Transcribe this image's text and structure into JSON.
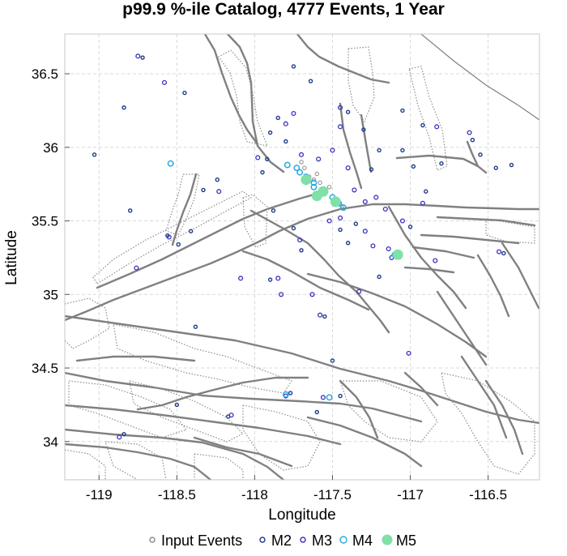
{
  "chart_data": {
    "type": "scatter",
    "title": "p99.9 %-ile Catalog, 4777 Events, 1 Year",
    "xlabel": "Longitude",
    "ylabel": "Latitude",
    "xlim": [
      -119.22,
      -116.17
    ],
    "ylim": [
      33.74,
      36.77
    ],
    "xticks": [
      -119,
      -118.5,
      -118,
      -117.5,
      -117,
      -116.5
    ],
    "xtick_labels": [
      "-119",
      "-118.5",
      "-118",
      "-117.5",
      "-117",
      "-116.5"
    ],
    "yticks": [
      34,
      34.5,
      35,
      35.5,
      36,
      36.5
    ],
    "ytick_labels": [
      "34",
      "34.5",
      "35",
      "35.5",
      "36",
      "36.5"
    ],
    "grid": true,
    "legend_position": "bottom",
    "series": [
      {
        "name": "Input Events",
        "color": "#8c8c8c",
        "marker": "open-circle",
        "points": [
          [
            -117.68,
            35.86
          ],
          [
            -117.62,
            35.78
          ],
          [
            -117.55,
            35.7
          ],
          [
            -117.48,
            35.64
          ],
          [
            -117.6,
            35.82
          ],
          [
            -117.52,
            35.73
          ],
          [
            -117.7,
            35.9
          ],
          [
            -117.44,
            35.6
          ],
          [
            -117.58,
            35.76
          ],
          [
            -117.65,
            35.8
          ],
          [
            -117.1,
            35.27
          ],
          [
            -117.08,
            35.28
          ]
        ]
      },
      {
        "name": "M2",
        "color": "#1f3a8a",
        "marker": "open-circle",
        "points": [
          [
            -119.03,
            35.95
          ],
          [
            -118.72,
            36.61
          ],
          [
            -118.84,
            36.27
          ],
          [
            -118.45,
            36.37
          ],
          [
            -118.8,
            35.57
          ],
          [
            -118.33,
            35.71
          ],
          [
            -118.56,
            35.4
          ],
          [
            -118.49,
            35.34
          ],
          [
            -118.41,
            35.43
          ],
          [
            -118.24,
            35.78
          ],
          [
            -117.92,
            35.92
          ],
          [
            -117.95,
            35.83
          ],
          [
            -117.9,
            36.1
          ],
          [
            -117.85,
            36.2
          ],
          [
            -117.8,
            36.04
          ],
          [
            -117.88,
            35.57
          ],
          [
            -117.75,
            35.45
          ],
          [
            -117.7,
            35.3
          ],
          [
            -117.45,
            35.44
          ],
          [
            -117.4,
            35.35
          ],
          [
            -117.35,
            35.48
          ],
          [
            -117.25,
            35.85
          ],
          [
            -117.2,
            35.98
          ],
          [
            -117.3,
            36.12
          ],
          [
            -117.4,
            36.24
          ],
          [
            -117.05,
            35.98
          ],
          [
            -116.98,
            35.87
          ],
          [
            -116.9,
            35.7
          ],
          [
            -116.8,
            35.89
          ],
          [
            -116.6,
            36.05
          ],
          [
            -116.55,
            35.95
          ],
          [
            -116.45,
            35.86
          ],
          [
            -116.35,
            35.88
          ],
          [
            -116.4,
            35.28
          ],
          [
            -117.0,
            35.46
          ],
          [
            -117.2,
            35.12
          ],
          [
            -117.55,
            34.85
          ],
          [
            -117.5,
            34.55
          ],
          [
            -117.9,
            35.1
          ],
          [
            -118.38,
            34.78
          ],
          [
            -118.5,
            34.25
          ],
          [
            -118.17,
            34.17
          ],
          [
            -117.77,
            34.33
          ],
          [
            -117.6,
            34.2
          ],
          [
            -117.45,
            34.31
          ],
          [
            -118.84,
            34.05
          ],
          [
            -117.64,
            36.45
          ],
          [
            -117.75,
            36.55
          ],
          [
            -117.05,
            36.25
          ],
          [
            -116.92,
            36.15
          ]
        ]
      },
      {
        "name": "M3",
        "color": "#3b2fbf",
        "marker": "open-circle",
        "points": [
          [
            -118.75,
            36.62
          ],
          [
            -118.58,
            36.44
          ],
          [
            -118.23,
            35.7
          ],
          [
            -118.76,
            35.18
          ],
          [
            -118.55,
            35.39
          ],
          [
            -118.09,
            35.11
          ],
          [
            -117.85,
            35.11
          ],
          [
            -117.83,
            35.0
          ],
          [
            -117.58,
            34.86
          ],
          [
            -117.29,
            35.43
          ],
          [
            -117.24,
            35.33
          ],
          [
            -117.33,
            35.02
          ],
          [
            -117.01,
            34.6
          ],
          [
            -117.05,
            35.5
          ],
          [
            -116.92,
            35.62
          ],
          [
            -116.84,
            35.23
          ],
          [
            -116.62,
            36.1
          ],
          [
            -116.83,
            36.14
          ],
          [
            -116.43,
            35.29
          ],
          [
            -117.63,
            35.0
          ],
          [
            -117.71,
            35.37
          ],
          [
            -117.98,
            35.93
          ],
          [
            -117.75,
            36.23
          ],
          [
            -117.8,
            36.16
          ],
          [
            -117.7,
            35.95
          ],
          [
            -117.59,
            35.92
          ],
          [
            -117.5,
            35.98
          ],
          [
            -117.4,
            35.86
          ],
          [
            -117.36,
            35.71
          ],
          [
            -117.45,
            35.52
          ],
          [
            -117.52,
            35.5
          ],
          [
            -117.29,
            35.63
          ],
          [
            -117.22,
            35.66
          ],
          [
            -117.16,
            35.58
          ],
          [
            -117.12,
            35.25
          ],
          [
            -117.07,
            35.27
          ],
          [
            -117.14,
            35.31
          ],
          [
            -118.87,
            34.03
          ],
          [
            -118.15,
            34.18
          ],
          [
            -117.8,
            34.31
          ],
          [
            -117.56,
            34.3
          ],
          [
            -117.45,
            36.27
          ],
          [
            -117.45,
            36.14
          ]
        ]
      },
      {
        "name": "M4",
        "color": "#2aa8e0",
        "marker": "open-circle",
        "points": [
          [
            -118.54,
            35.89
          ],
          [
            -117.79,
            35.88
          ],
          [
            -117.71,
            35.83
          ],
          [
            -117.67,
            35.8
          ],
          [
            -117.62,
            35.73
          ],
          [
            -117.56,
            35.7
          ],
          [
            -117.5,
            35.66
          ],
          [
            -117.43,
            35.59
          ],
          [
            -117.46,
            35.62
          ],
          [
            -117.73,
            35.86
          ],
          [
            -117.1,
            35.27
          ],
          [
            -117.07,
            35.27
          ],
          [
            -117.52,
            34.3
          ],
          [
            -117.8,
            34.32
          ],
          [
            -117.62,
            35.76
          ]
        ]
      },
      {
        "name": "M5",
        "color": "#7fe0a8",
        "marker": "filled-circle",
        "points": [
          [
            -117.67,
            35.78
          ],
          [
            -117.56,
            35.7
          ],
          [
            -117.6,
            35.67
          ],
          [
            -117.48,
            35.63
          ],
          [
            -117.08,
            35.27
          ]
        ]
      }
    ]
  }
}
